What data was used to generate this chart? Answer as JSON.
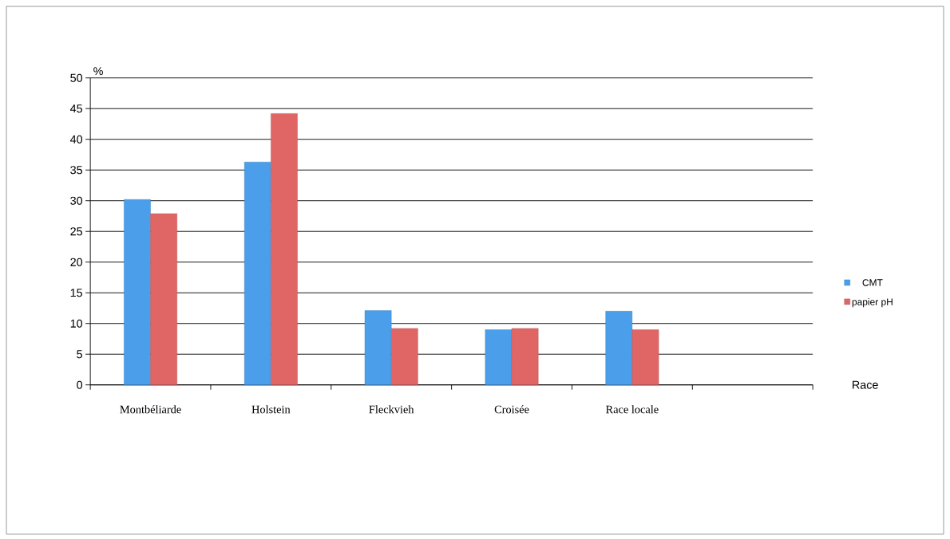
{
  "chart_data": {
    "type": "bar",
    "xlabel": "Race",
    "ylabel": "%",
    "categories": [
      "Montbéliarde",
      "Holstein",
      "Fleckvieh",
      "Croisée",
      "Race locale",
      null
    ],
    "series": [
      {
        "name": "CMT",
        "color": "#4a9eea",
        "values": [
          30.2,
          36.3,
          12.1,
          9.0,
          12.0,
          null
        ]
      },
      {
        "name": "papier pH",
        "color": "#e06666",
        "values": [
          27.9,
          44.2,
          9.2,
          9.2,
          9.0,
          null
        ]
      }
    ],
    "ylim": [
      0,
      50
    ],
    "yticks": [
      0,
      5,
      10,
      15,
      20,
      25,
      30,
      35,
      40,
      45,
      50
    ],
    "grid": "y",
    "legend": "right"
  }
}
